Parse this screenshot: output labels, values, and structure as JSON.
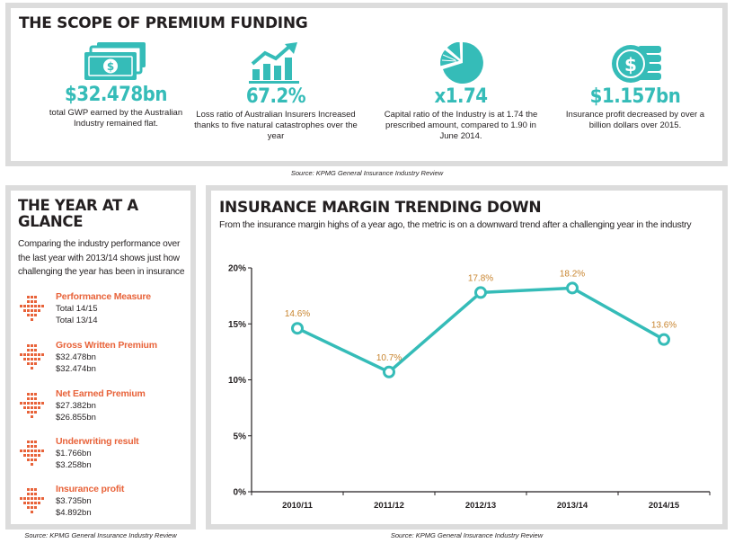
{
  "scope": {
    "title": "THE SCOPE OF PREMIUM FUNDING",
    "kpis": [
      {
        "icon": "cash-icon",
        "value": "$32.478bn",
        "desc_line1": "total GWP earned by the Australian",
        "desc_line2": "Industry remained flat."
      },
      {
        "icon": "bar-chart-rising-icon",
        "value": "67.2%",
        "desc_line1": "Loss ratio of Australian Insurers Increased",
        "desc_line2": "thanks to five natural catastrophes over the year"
      },
      {
        "icon": "pie-chart-icon",
        "value": "x1.74",
        "desc_line1": "Capital ratio of the Industry is at 1.74 the",
        "desc_line2": "prescribed amount, compared to 1.90 in June 2014."
      },
      {
        "icon": "coin-stack-icon",
        "value": "$1.157bn",
        "desc_line1": "Insurance profit decreased by over a",
        "desc_line2": "billion dollars over 2015."
      }
    ],
    "source": "Source: KPMG General Insurance Industry Review"
  },
  "glance": {
    "title_line1": "THE YEAR AT A",
    "title_line2": "GLANCE",
    "intro": "Comparing the industry performance over the last year with 2013/14 shows just how challenging the year has been in insurance",
    "measures": [
      {
        "label": "Performance Measure",
        "v1": "Total 14/15",
        "v2": "Total 13/14"
      },
      {
        "label": "Gross Written Premium",
        "v1": "$32.478bn",
        "v2": "$32.474bn"
      },
      {
        "label": "Net Earned Premium",
        "v1": "$27.382bn",
        "v2": "$26.855bn"
      },
      {
        "label": "Underwriting result",
        "v1": "$1.766bn",
        "v2": "$3.258bn"
      },
      {
        "label": "Insurance profit",
        "v1": "$3.735bn",
        "v2": "$4.892bn"
      }
    ],
    "source": "Source: KPMG General Insurance Industry Review"
  },
  "margin": {
    "title": "INSURANCE MARGIN TRENDING DOWN",
    "subtitle": "From the insurance margin highs of a year ago, the metric is on a downward trend after a challenging year in the industry",
    "source": "Source: KPMG General Insurance Industry Review"
  },
  "colors": {
    "accent_teal": "#35bcb8",
    "accent_orange": "#e8633a",
    "label_orange": "#c8842e",
    "border_grey": "#dcdcdc"
  },
  "chart_data": {
    "type": "line",
    "title": "INSURANCE MARGIN TRENDING DOWN",
    "categories": [
      "2010/11",
      "2011/12",
      "2012/13",
      "2013/14",
      "2014/15"
    ],
    "values": [
      14.6,
      10.7,
      17.8,
      18.2,
      13.6
    ],
    "data_labels": [
      "14.6%",
      "10.7%",
      "17.8%",
      "18.2%",
      "13.6%"
    ],
    "ylim": [
      0,
      20
    ],
    "yticks": [
      0,
      5,
      10,
      15,
      20
    ],
    "ytick_labels": [
      "0%",
      "5%",
      "10%",
      "15%",
      "20%"
    ],
    "xlabel": "",
    "ylabel": "",
    "grid": false
  }
}
